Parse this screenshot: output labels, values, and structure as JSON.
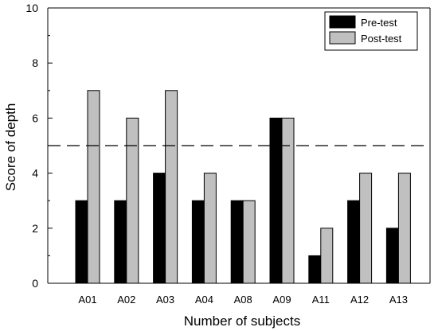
{
  "chart_data": {
    "type": "bar",
    "title": "",
    "xlabel": "Number of subjects",
    "ylabel": "Score of depth",
    "ylim": [
      0,
      10
    ],
    "yticks": [
      0,
      2,
      4,
      6,
      8,
      10
    ],
    "categories": [
      "A01",
      "A02",
      "A03",
      "A04",
      "A08",
      "A09",
      "A11",
      "A12",
      "A13"
    ],
    "series": [
      {
        "name": "Pre-test",
        "color": "#000000",
        "values": [
          3,
          3,
          4,
          3,
          3,
          6,
          1,
          3,
          2
        ]
      },
      {
        "name": "Post-test",
        "color": "#c0c0c0",
        "values": [
          7,
          6,
          7,
          4,
          3,
          6,
          2,
          4,
          4
        ]
      }
    ],
    "reference_line": {
      "y": 5,
      "style": "dashed"
    },
    "legend_position": "top-right",
    "grid": false
  }
}
